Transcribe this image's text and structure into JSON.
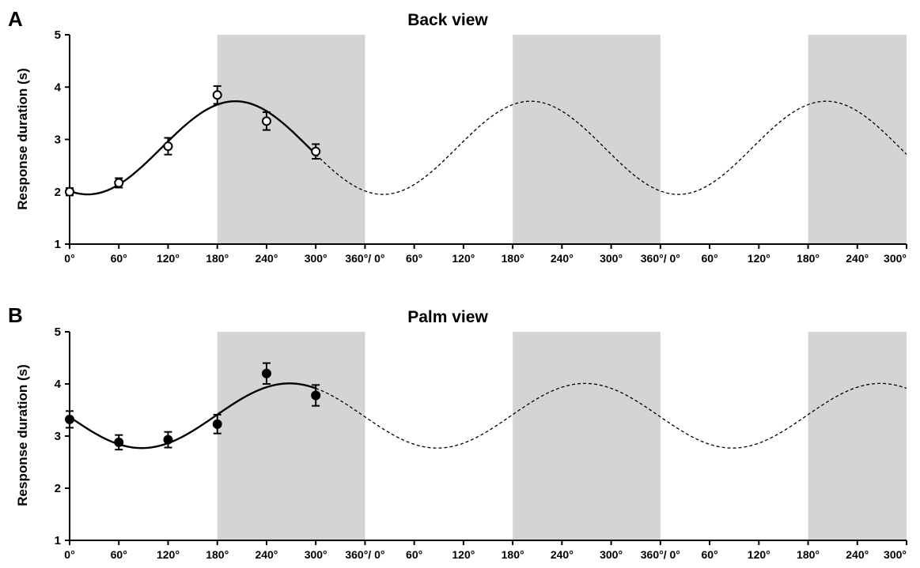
{
  "chart_data": [
    {
      "panel": "A",
      "type": "scatter",
      "title": "Back view",
      "xlabel": "",
      "ylabel": "Response duration (s)",
      "ylim": [
        1,
        5
      ],
      "yticks": [
        1,
        2,
        3,
        4,
        5
      ],
      "x_ticks": [
        {
          "x": 0,
          "label": "0°"
        },
        {
          "x": 60,
          "label": "60°"
        },
        {
          "x": 120,
          "label": "120°"
        },
        {
          "x": 180,
          "label": "180°"
        },
        {
          "x": 240,
          "label": "240°"
        },
        {
          "x": 300,
          "label": "300°"
        },
        {
          "x": 360,
          "label": "360°/ 0°"
        },
        {
          "x": 420,
          "label": "60°"
        },
        {
          "x": 480,
          "label": "120°"
        },
        {
          "x": 540,
          "label": "180°"
        },
        {
          "x": 600,
          "label": "240°"
        },
        {
          "x": 660,
          "label": "300°"
        },
        {
          "x": 720,
          "label": "360°/ 0°"
        },
        {
          "x": 780,
          "label": "60°"
        },
        {
          "x": 840,
          "label": "120°"
        },
        {
          "x": 900,
          "label": "180°"
        },
        {
          "x": 960,
          "label": "240°"
        },
        {
          "x": 1020,
          "label": "300°"
        }
      ],
      "shaded_ranges": [
        [
          180,
          360
        ],
        [
          540,
          720
        ],
        [
          900,
          1020
        ]
      ],
      "marker": "open-circle",
      "points": [
        {
          "x": 0,
          "y": 2.0,
          "err": 0.07
        },
        {
          "x": 60,
          "y": 2.17,
          "err": 0.09
        },
        {
          "x": 120,
          "y": 2.87,
          "err": 0.16
        },
        {
          "x": 180,
          "y": 3.85,
          "err": 0.17
        },
        {
          "x": 240,
          "y": 3.35,
          "err": 0.17
        },
        {
          "x": 300,
          "y": 2.77,
          "err": 0.14
        }
      ],
      "fit": {
        "mean": 2.84,
        "amplitude": 0.89,
        "peak_deg": 202,
        "solid_range": [
          0,
          300
        ],
        "dashed_range": [
          300,
          1020
        ]
      }
    },
    {
      "panel": "B",
      "type": "scatter",
      "title": "Palm view",
      "xlabel": "",
      "ylabel": "Response duration (s)",
      "ylim": [
        1,
        5
      ],
      "yticks": [
        1,
        2,
        3,
        4,
        5
      ],
      "x_ticks": [
        {
          "x": 0,
          "label": "0°"
        },
        {
          "x": 60,
          "label": "60°"
        },
        {
          "x": 120,
          "label": "120°"
        },
        {
          "x": 180,
          "label": "180°"
        },
        {
          "x": 240,
          "label": "240°"
        },
        {
          "x": 300,
          "label": "300°"
        },
        {
          "x": 360,
          "label": "360°/ 0°"
        },
        {
          "x": 420,
          "label": "60°"
        },
        {
          "x": 480,
          "label": "120°"
        },
        {
          "x": 540,
          "label": "180°"
        },
        {
          "x": 600,
          "label": "240°"
        },
        {
          "x": 660,
          "label": "300°"
        },
        {
          "x": 720,
          "label": "360°/ 0°"
        },
        {
          "x": 780,
          "label": "60°"
        },
        {
          "x": 840,
          "label": "120°"
        },
        {
          "x": 900,
          "label": "180°"
        },
        {
          "x": 960,
          "label": "240°"
        },
        {
          "x": 1020,
          "label": "300°"
        }
      ],
      "shaded_ranges": [
        [
          180,
          360
        ],
        [
          540,
          720
        ],
        [
          900,
          1020
        ]
      ],
      "marker": "filled-circle",
      "points": [
        {
          "x": 0,
          "y": 3.32,
          "err": 0.16
        },
        {
          "x": 60,
          "y": 2.88,
          "err": 0.14
        },
        {
          "x": 120,
          "y": 2.93,
          "err": 0.15
        },
        {
          "x": 180,
          "y": 3.23,
          "err": 0.18
        },
        {
          "x": 240,
          "y": 4.2,
          "err": 0.2
        },
        {
          "x": 300,
          "y": 3.78,
          "err": 0.2
        }
      ],
      "fit": {
        "mean": 3.39,
        "amplitude": 0.62,
        "peak_deg": 268,
        "solid_range": [
          0,
          300
        ],
        "dashed_range": [
          300,
          1020
        ]
      }
    }
  ]
}
